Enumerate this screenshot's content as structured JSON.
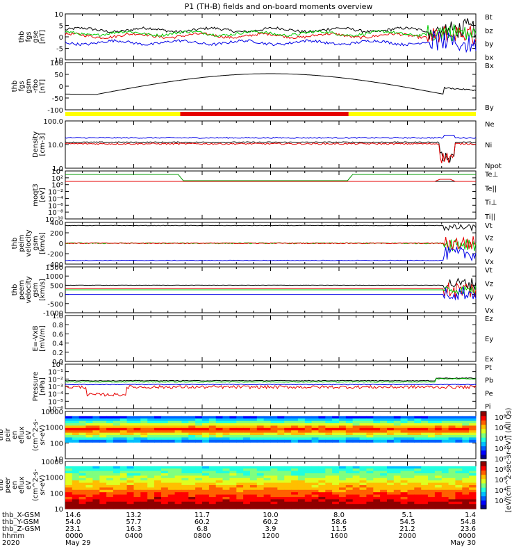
{
  "title": "P1 (TH-B) fields and on-board moments overview",
  "colors": {
    "black": "#000000",
    "red": "#e60000",
    "green": "#00cc00",
    "blue": "#0000e6",
    "yellow": "#ffff00",
    "darkgreen": "#009900",
    "purple": "#7f007f"
  },
  "chart_data": [
    {
      "type": "line",
      "ylabel": [
        "thb",
        "fgs",
        "gse",
        "[nT]"
      ],
      "yticks": [
        "10",
        "5",
        "0",
        "-5",
        "-10"
      ],
      "ylim": [
        -10,
        10
      ],
      "series": [
        {
          "name": "Bt",
          "color": "#000000",
          "level": 3
        },
        {
          "name": "bz",
          "color": "#e60000",
          "level": 0.5
        },
        {
          "name": "by",
          "color": "#00cc00",
          "level": 1.5
        },
        {
          "name": "bx",
          "color": "#0000e6",
          "level": -2.5
        }
      ]
    },
    {
      "type": "line",
      "ylabel": [
        "thb",
        "fgs",
        "gsm",
        "-rbo",
        "[nT]"
      ],
      "yticks": [
        "100",
        "50",
        "0",
        "-50",
        "-100"
      ],
      "ylim": [
        -125,
        100
      ],
      "series": [
        {
          "name": "Bx",
          "color": "#000000"
        },
        {
          "name": "By",
          "color": "#00cc00"
        }
      ]
    },
    {
      "type": "line",
      "ylabel": [
        "Density",
        "[cm-3]"
      ],
      "yticks": [
        "100.0",
        "10.0",
        "1.0"
      ],
      "log": true,
      "series": [
        {
          "name": "Ne",
          "color": "#e60000"
        },
        {
          "name": "Ni",
          "color": "#000000"
        },
        {
          "name": "Npot",
          "color": "#0000e6"
        }
      ]
    },
    {
      "type": "line",
      "ylabel": [
        "moqt3",
        "[eV]"
      ],
      "yticks": [
        "10⁴",
        "10²",
        "10⁰",
        "10⁻²",
        "10⁻⁴",
        "10⁻⁶",
        "10⁻⁸",
        "10⁻¹⁰"
      ],
      "log": true,
      "series": [
        {
          "name": "Te⊥",
          "color": "#e60000"
        },
        {
          "name": "Te||",
          "color": "#000000"
        },
        {
          "name": "Ti⊥",
          "color": "#7f007f"
        },
        {
          "name": "Ti||",
          "color": "#009900"
        }
      ]
    },
    {
      "type": "line",
      "ylabel": [
        "thb",
        "peim",
        "velocity",
        "gsm",
        "[km/s]"
      ],
      "yticks": [
        "400",
        "200",
        "0",
        "-200",
        "-400"
      ],
      "ylim": [
        -400,
        400
      ],
      "series": [
        {
          "name": "Vt",
          "color": "#000000"
        },
        {
          "name": "Vz",
          "color": "#e60000"
        },
        {
          "name": "Vy",
          "color": "#00cc00"
        },
        {
          "name": "Vx",
          "color": "#0000e6"
        }
      ]
    },
    {
      "type": "line",
      "ylabel": [
        "thb",
        "peem",
        "velocity",
        "gsm",
        "[km/s]"
      ],
      "yticks": [
        "1500",
        "1000",
        "500",
        "0",
        "-500",
        "-1000"
      ],
      "ylim": [
        -1500,
        1500
      ],
      "series": [
        {
          "name": "Vt",
          "color": "#000000"
        },
        {
          "name": "Vz",
          "color": "#e60000"
        },
        {
          "name": "Vy",
          "color": "#00cc00"
        },
        {
          "name": "Vx",
          "color": "#0000e6"
        }
      ]
    },
    {
      "type": "line",
      "ylabel": [
        "E=-VxB",
        "[mV/m]"
      ],
      "yticks": [
        "1.0",
        "0.8",
        "0.6",
        "0.4",
        "0.2",
        "0.0"
      ],
      "ylim": [
        0,
        1
      ],
      "series": [
        {
          "name": "Ez",
          "color": "#e60000"
        },
        {
          "name": "Ey",
          "color": "#00cc00"
        },
        {
          "name": "Ex",
          "color": "#0000e6"
        }
      ]
    },
    {
      "type": "line",
      "ylabel": [
        "Pressure",
        "[nPa]"
      ],
      "yticks": [
        "10¹",
        "10⁻¹",
        "10⁻²",
        "10⁻³",
        "10⁻⁴",
        "10⁻⁵",
        "10⁻⁶"
      ],
      "log": true,
      "series": [
        {
          "name": "Pt",
          "color": "#000000"
        },
        {
          "name": "Pb",
          "color": "#e60000"
        },
        {
          "name": "Pe",
          "color": "#00cc00"
        },
        {
          "name": "Pi",
          "color": "#0000e6"
        }
      ]
    },
    {
      "type": "heatmap",
      "ylabel": [
        "thb",
        "peir",
        "en",
        "eflux",
        "eV",
        "(cm^2-s-",
        "sr-eV)"
      ],
      "yticks": [
        "10000",
        "1000",
        "100",
        "10"
      ]
    },
    {
      "type": "heatmap",
      "ylabel": [
        "thb",
        "peer",
        "en",
        "eflux",
        "eV",
        "(cm^2-s-",
        "sr-eV)"
      ],
      "yticks": [
        "10000",
        "1000",
        "100",
        "10"
      ]
    }
  ],
  "colorbar": {
    "ticks": [
      "10⁸",
      "10⁶",
      "10⁴",
      "10²",
      "10⁰",
      "10⁸",
      "10⁶",
      "10⁴",
      "10²"
    ],
    "label": "[eV/(cm^2-sec-sr-eV)] (All Qs)"
  },
  "x_axis": {
    "rows": [
      {
        "label": "thb_X-GSM",
        "values": [
          "14.6",
          "13.2",
          "11.7",
          "10.0",
          "8.0",
          "5.1",
          "1.4"
        ]
      },
      {
        "label": "thb_Y-GSM",
        "values": [
          "54.0",
          "57.7",
          "60.2",
          "60.2",
          "58.6",
          "54.5",
          "54.8"
        ]
      },
      {
        "label": "thb_Z-GSM",
        "values": [
          "23.1",
          "16.3",
          "6.8",
          "3.9",
          "11.5",
          "21.2",
          "23.6"
        ]
      },
      {
        "label": "hhmm",
        "values": [
          "0000",
          "0400",
          "0800",
          "1200",
          "1600",
          "2000",
          "0000"
        ]
      },
      {
        "label": "2020",
        "values": [
          "May 29",
          "",
          "",
          "",
          "",
          "",
          "May 30"
        ]
      }
    ]
  }
}
